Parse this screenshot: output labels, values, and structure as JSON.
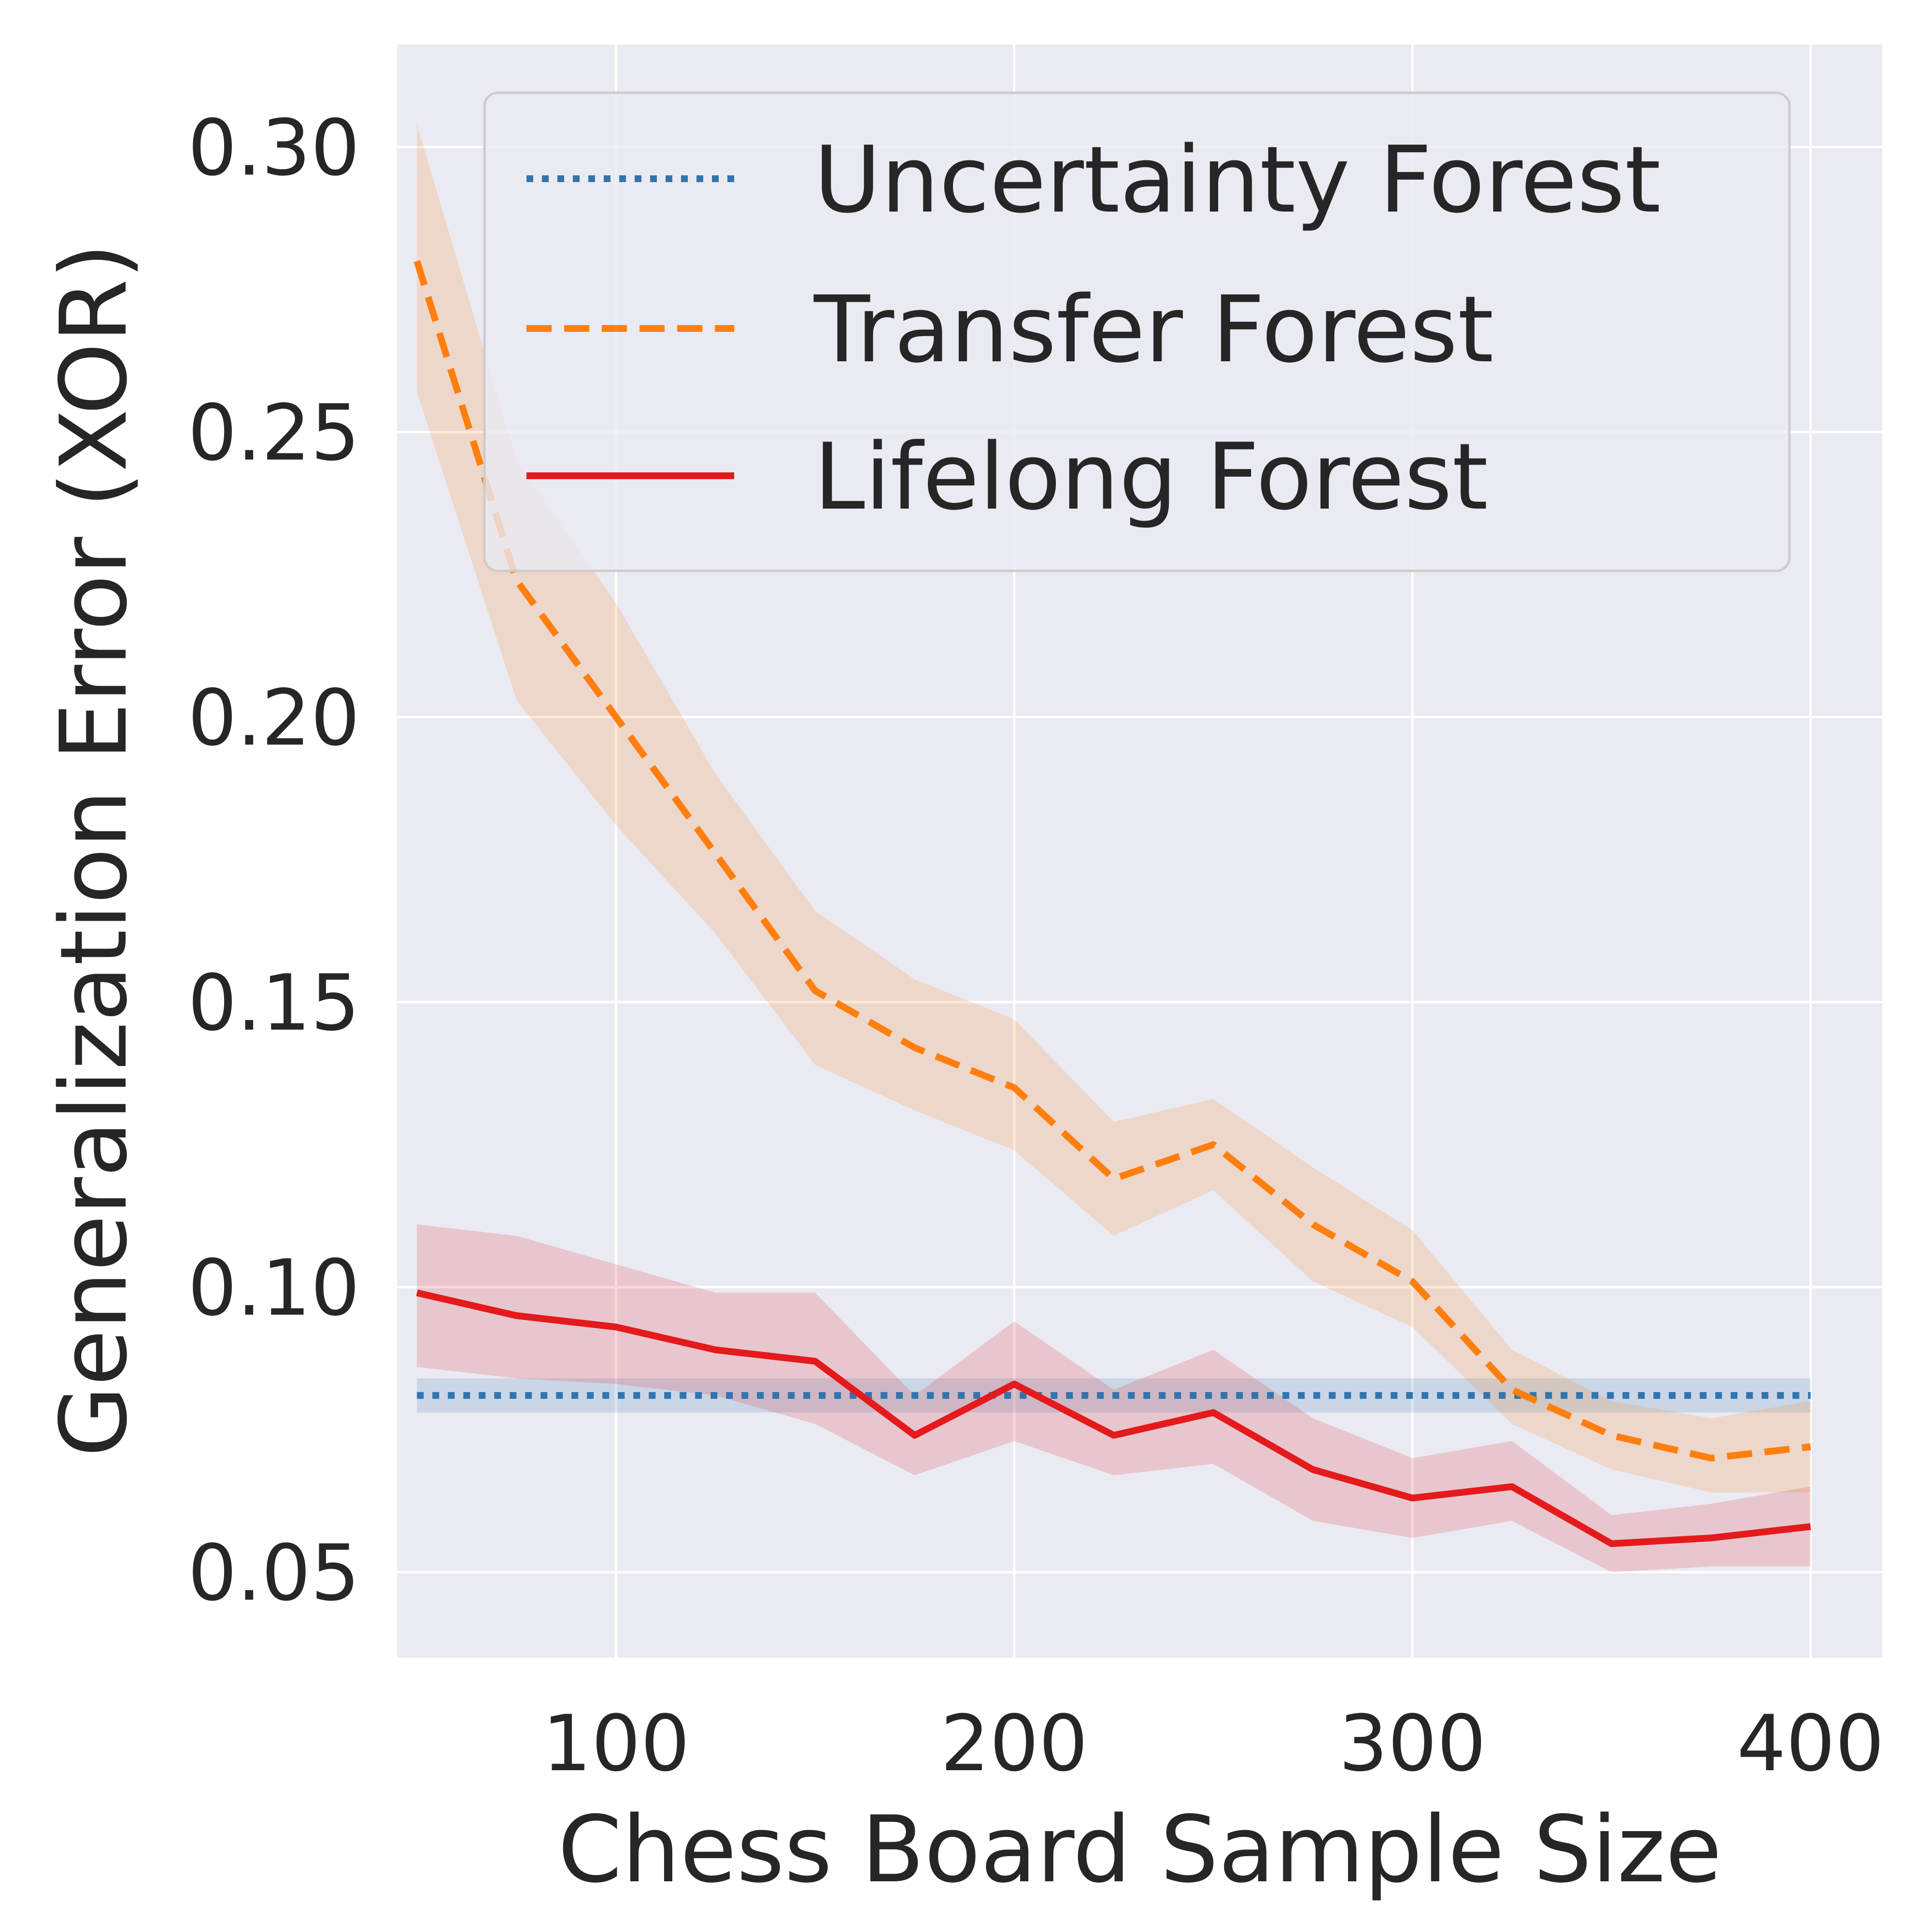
{
  "chart_data": {
    "type": "line",
    "title": "",
    "xlabel": "Chess Board Sample Size",
    "ylabel": "Generalization Error (XOR)",
    "xlim": [
      45,
      418
    ],
    "ylim": [
      0.035,
      0.318
    ],
    "xticks": [
      100,
      200,
      300,
      400
    ],
    "yticks": [
      0.05,
      0.1,
      0.15,
      0.2,
      0.25,
      0.3
    ],
    "xtick_labels": [
      "100",
      "200",
      "300",
      "400"
    ],
    "ytick_labels": [
      "0.05",
      "0.10",
      "0.15",
      "0.20",
      "0.25",
      "0.30"
    ],
    "grid": true,
    "legend_position": "top-right",
    "x": [
      50,
      75,
      100,
      125,
      150,
      175,
      200,
      225,
      250,
      275,
      300,
      325,
      350,
      375,
      400
    ],
    "series": [
      {
        "name": "Uncertainty Forest",
        "style": "dotted",
        "color": "#3274ae",
        "values": [
          0.081,
          0.081,
          0.081,
          0.081,
          0.081,
          0.081,
          0.081,
          0.081,
          0.081,
          0.081,
          0.081,
          0.081,
          0.081,
          0.081,
          0.081
        ],
        "lower": [
          0.078,
          0.078,
          0.078,
          0.078,
          0.078,
          0.078,
          0.078,
          0.078,
          0.078,
          0.078,
          0.078,
          0.078,
          0.078,
          0.078,
          0.078
        ],
        "upper": [
          0.084,
          0.084,
          0.084,
          0.084,
          0.084,
          0.084,
          0.084,
          0.084,
          0.084,
          0.084,
          0.084,
          0.084,
          0.084,
          0.084,
          0.084
        ]
      },
      {
        "name": "Transfer Forest",
        "style": "dashed",
        "color": "#ff7f0e",
        "values": [
          0.28,
          0.224,
          0.2,
          0.176,
          0.152,
          0.142,
          0.135,
          0.119,
          0.125,
          0.111,
          0.101,
          0.082,
          0.074,
          0.07,
          0.072
        ],
        "lower": [
          0.257,
          0.203,
          0.181,
          0.162,
          0.139,
          0.131,
          0.124,
          0.109,
          0.117,
          0.101,
          0.093,
          0.076,
          0.068,
          0.064,
          0.064
        ],
        "upper": [
          0.304,
          0.245,
          0.22,
          0.19,
          0.166,
          0.154,
          0.147,
          0.129,
          0.133,
          0.121,
          0.11,
          0.089,
          0.08,
          0.077,
          0.08
        ]
      },
      {
        "name": "Lifelong Forest",
        "style": "solid",
        "color": "#e41a1c",
        "values": [
          0.099,
          0.095,
          0.093,
          0.089,
          0.087,
          0.074,
          0.083,
          0.074,
          0.078,
          0.068,
          0.063,
          0.065,
          0.055,
          0.056,
          0.058
        ],
        "lower": [
          0.086,
          0.084,
          0.083,
          0.081,
          0.076,
          0.067,
          0.073,
          0.067,
          0.069,
          0.059,
          0.056,
          0.059,
          0.05,
          0.051,
          0.051
        ],
        "upper": [
          0.111,
          0.109,
          0.104,
          0.099,
          0.099,
          0.081,
          0.094,
          0.082,
          0.089,
          0.077,
          0.07,
          0.073,
          0.06,
          0.062,
          0.065
        ]
      }
    ]
  }
}
